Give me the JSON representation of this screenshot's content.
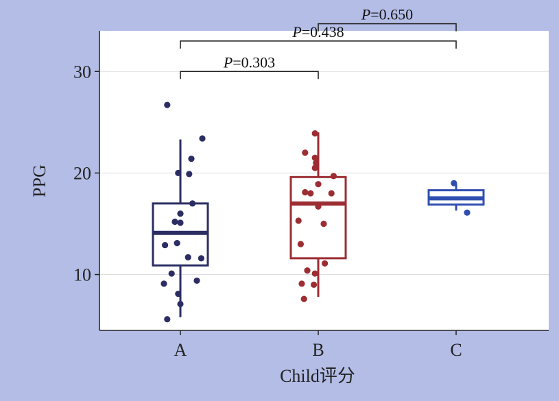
{
  "chart_data": {
    "type": "box",
    "xlabel": "Child评分",
    "ylabel": "PPG",
    "ylim": [
      4.5,
      34
    ],
    "yticks": [
      10,
      20,
      30
    ],
    "categories": [
      "A",
      "B",
      "C"
    ],
    "grid": "horizontal",
    "groups": [
      {
        "name": "A",
        "color": "#2b2d63",
        "box": {
          "whisker_low": 5.8,
          "q1": 10.9,
          "median": 14.1,
          "q3": 17.0,
          "whisker_high": 23.3
        },
        "points": [
          [
            -0.12,
            26.7
          ],
          [
            0.2,
            23.4
          ],
          [
            0.1,
            21.4
          ],
          [
            -0.02,
            20.0
          ],
          [
            0.08,
            19.9
          ],
          [
            0.11,
            17.0
          ],
          [
            0.0,
            16.0
          ],
          [
            -0.05,
            15.2
          ],
          [
            0.0,
            15.1
          ],
          [
            -0.03,
            13.1
          ],
          [
            -0.14,
            12.9
          ],
          [
            0.07,
            11.7
          ],
          [
            0.19,
            11.6
          ],
          [
            0.15,
            9.4
          ],
          [
            -0.08,
            10.1
          ],
          [
            -0.15,
            9.1
          ],
          [
            -0.02,
            8.1
          ],
          [
            0.0,
            7.1
          ],
          [
            -0.12,
            5.6
          ]
        ]
      },
      {
        "name": "B",
        "color": "#9b2d33",
        "box": {
          "whisker_low": 7.8,
          "q1": 11.6,
          "median": 17.0,
          "q3": 19.6,
          "whisker_high": 24.0
        },
        "points": [
          [
            -0.03,
            23.9
          ],
          [
            -0.12,
            22.0
          ],
          [
            -0.03,
            21.5
          ],
          [
            -0.02,
            21.0
          ],
          [
            -0.03,
            20.5
          ],
          [
            0.14,
            19.7
          ],
          [
            -0.12,
            18.1
          ],
          [
            -0.07,
            18.0
          ],
          [
            0.12,
            18.0
          ],
          [
            0.0,
            18.9
          ],
          [
            0.0,
            16.7
          ],
          [
            -0.18,
            15.3
          ],
          [
            0.05,
            15.0
          ],
          [
            -0.16,
            13.0
          ],
          [
            0.06,
            11.1
          ],
          [
            -0.1,
            10.4
          ],
          [
            -0.03,
            10.1
          ],
          [
            -0.15,
            9.1
          ],
          [
            -0.04,
            9.0
          ],
          [
            -0.13,
            7.6
          ]
        ]
      },
      {
        "name": "C",
        "color": "#2f4fb0",
        "box": {
          "whisker_low": 16.3,
          "q1": 16.9,
          "median": 17.5,
          "q3": 18.3,
          "whisker_high": 18.9
        },
        "points": [
          [
            -0.02,
            19.0
          ],
          [
            0.1,
            16.1
          ]
        ]
      }
    ],
    "comparisons": [
      {
        "from": "A",
        "to": "B",
        "p_prefix": "P",
        "p_rest": "=0.303",
        "level": 30.0
      },
      {
        "from": "A",
        "to": "C",
        "p_prefix": "P",
        "p_rest": "=0.438",
        "level": 33.0
      },
      {
        "from": "B",
        "to": "C",
        "p_prefix": "P",
        "p_rest": "=0.650",
        "level": 34.7
      }
    ]
  }
}
